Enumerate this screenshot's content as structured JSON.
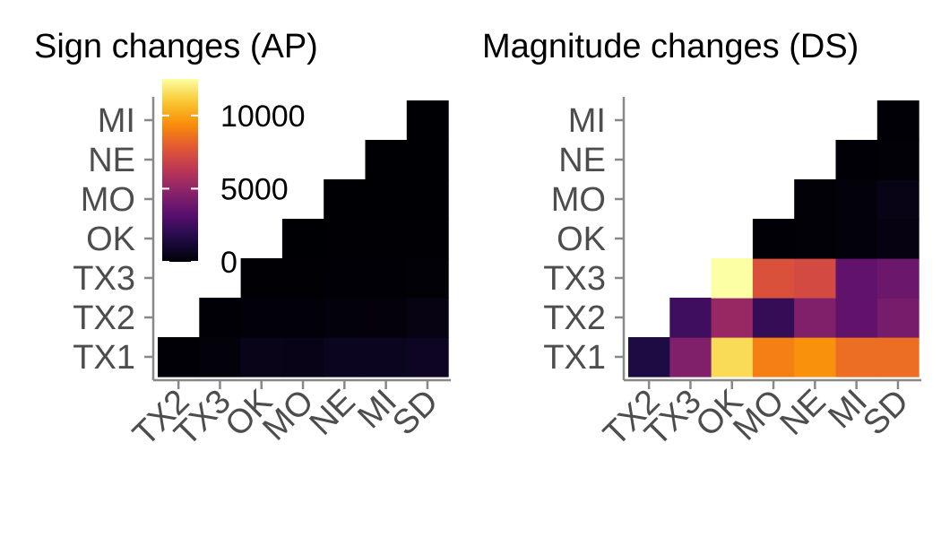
{
  "chart_data": [
    {
      "type": "heatmap",
      "title": "Sign changes (AP)",
      "x_categories": [
        "TX2",
        "TX3",
        "OK",
        "MO",
        "NE",
        "MI",
        "SD"
      ],
      "y_categories": [
        "TX1",
        "TX2",
        "TX3",
        "OK",
        "MO",
        "NE",
        "MI"
      ],
      "values": [
        [
          50,
          150,
          500,
          450,
          650,
          650,
          700
        ],
        [
          null,
          40,
          120,
          130,
          180,
          200,
          350
        ],
        [
          null,
          null,
          20,
          30,
          40,
          50,
          80
        ],
        [
          null,
          null,
          null,
          10,
          15,
          20,
          25
        ],
        [
          null,
          null,
          null,
          null,
          5,
          8,
          10
        ],
        [
          null,
          null,
          null,
          null,
          null,
          5,
          8
        ],
        [
          null,
          null,
          null,
          null,
          null,
          null,
          5
        ]
      ],
      "colorbar": {
        "ticks": [
          0,
          5000,
          10000
        ],
        "min": 0,
        "max": 12500,
        "colormap": "inferno"
      },
      "legend_position": "top-left"
    },
    {
      "type": "heatmap",
      "title": "Magnitude changes (DS)",
      "x_categories": [
        "TX2",
        "TX3",
        "OK",
        "MO",
        "NE",
        "MI",
        "SD"
      ],
      "y_categories": [
        "TX1",
        "TX2",
        "TX3",
        "OK",
        "MO",
        "NE",
        "MI"
      ],
      "values": [
        [
          1500,
          4500,
          11500,
          9000,
          9500,
          8500,
          8500
        ],
        [
          null,
          2500,
          5200,
          2200,
          4500,
          3500,
          4200
        ],
        [
          null,
          null,
          12500,
          7500,
          7200,
          3500,
          3800
        ],
        [
          null,
          null,
          null,
          50,
          80,
          150,
          300
        ],
        [
          null,
          null,
          null,
          null,
          80,
          150,
          400
        ],
        [
          null,
          null,
          null,
          null,
          null,
          50,
          100
        ],
        [
          null,
          null,
          null,
          null,
          null,
          null,
          50
        ]
      ],
      "colorbar": {
        "min": 0,
        "max": 12500,
        "colormap": "inferno"
      }
    }
  ]
}
